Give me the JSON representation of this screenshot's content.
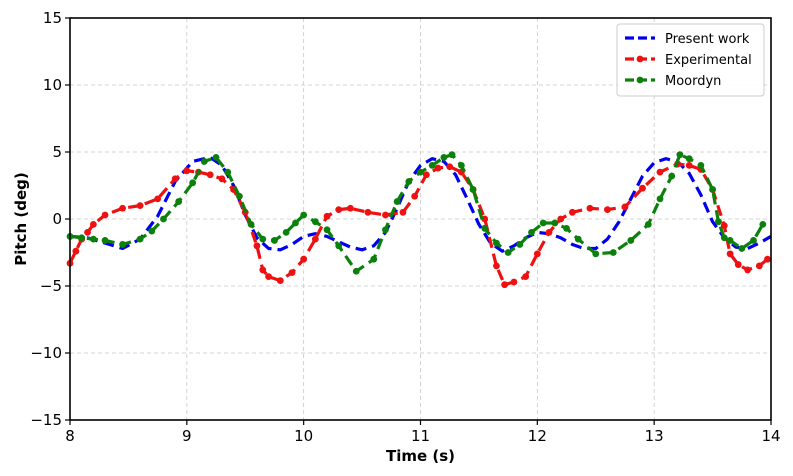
{
  "chart_data": {
    "type": "line",
    "title": "",
    "xlabel": "Time (s)",
    "ylabel": "Pitch (deg)",
    "xlim": [
      8,
      14
    ],
    "ylim": [
      -15,
      15
    ],
    "xticks": [
      8,
      9,
      10,
      11,
      12,
      13,
      14
    ],
    "yticks": [
      -15,
      -10,
      -5,
      0,
      5,
      10,
      15
    ],
    "xtick_labels": [
      "8",
      "9",
      "10",
      "11",
      "12",
      "13",
      "14"
    ],
    "ytick_labels": [
      "−15",
      "−10",
      "−5",
      "0",
      "5",
      "10",
      "15"
    ],
    "grid": true,
    "legend_position": "top-right",
    "series": [
      {
        "name": "Present work",
        "color": "#0000ee",
        "markers": false,
        "x": [
          8.0,
          8.15,
          8.3,
          8.45,
          8.6,
          8.75,
          8.9,
          9.05,
          9.2,
          9.3,
          9.4,
          9.5,
          9.6,
          9.7,
          9.8,
          9.9,
          10.0,
          10.1,
          10.2,
          10.3,
          10.4,
          10.5,
          10.6,
          10.7,
          10.8,
          10.9,
          11.0,
          11.1,
          11.2,
          11.3,
          11.4,
          11.5,
          11.6,
          11.7,
          11.8,
          11.9,
          12.0,
          12.1,
          12.2,
          12.3,
          12.4,
          12.5,
          12.6,
          12.7,
          12.8,
          12.9,
          13.0,
          13.1,
          13.2,
          13.3,
          13.4,
          13.5,
          13.6,
          13.7,
          13.8,
          13.9,
          14.0
        ],
        "y": [
          -1.3,
          -1.4,
          -1.8,
          -2.2,
          -1.5,
          0.2,
          2.8,
          4.3,
          4.6,
          4.0,
          2.5,
          0.3,
          -1.4,
          -2.2,
          -2.3,
          -1.9,
          -1.3,
          -1.1,
          -1.3,
          -1.7,
          -2.1,
          -2.3,
          -2.0,
          -1.0,
          0.8,
          2.8,
          4.0,
          4.5,
          4.3,
          3.3,
          1.5,
          -0.4,
          -1.8,
          -2.4,
          -2.0,
          -1.4,
          -1.0,
          -1.1,
          -1.4,
          -1.9,
          -2.2,
          -2.2,
          -1.5,
          -0.2,
          1.5,
          3.2,
          4.2,
          4.5,
          4.3,
          3.4,
          1.8,
          -0.2,
          -1.4,
          -2.1,
          -2.2,
          -1.8,
          -1.3
        ]
      },
      {
        "name": "Experimental",
        "color": "#ee1111",
        "markers": true,
        "x": [
          8.0,
          8.05,
          8.1,
          8.15,
          8.2,
          8.3,
          8.45,
          8.6,
          8.75,
          8.9,
          9.0,
          9.1,
          9.2,
          9.3,
          9.4,
          9.5,
          9.6,
          9.65,
          9.7,
          9.8,
          9.9,
          10.0,
          10.1,
          10.2,
          10.3,
          10.4,
          10.55,
          10.7,
          10.85,
          10.95,
          11.05,
          11.15,
          11.25,
          11.35,
          11.45,
          11.55,
          11.65,
          11.72,
          11.8,
          11.9,
          12.0,
          12.1,
          12.2,
          12.3,
          12.45,
          12.6,
          12.75,
          12.9,
          13.05,
          13.2,
          13.3,
          13.4,
          13.5,
          13.6,
          13.65,
          13.72,
          13.8,
          13.9,
          13.97
        ],
        "y": [
          -3.3,
          -2.4,
          -1.5,
          -1.0,
          -0.4,
          0.3,
          0.8,
          1.0,
          1.5,
          3.0,
          3.6,
          3.5,
          3.3,
          3.0,
          2.2,
          0.5,
          -2.0,
          -3.8,
          -4.3,
          -4.6,
          -4.0,
          -3.0,
          -1.5,
          0.2,
          0.7,
          0.8,
          0.5,
          0.3,
          0.5,
          1.7,
          3.3,
          3.8,
          3.9,
          3.5,
          2.2,
          0.0,
          -3.5,
          -4.9,
          -4.7,
          -4.3,
          -2.6,
          -1.0,
          0.0,
          0.5,
          0.8,
          0.7,
          0.9,
          2.3,
          3.5,
          4.1,
          4.0,
          3.7,
          2.2,
          -0.5,
          -2.6,
          -3.4,
          -3.8,
          -3.5,
          -3.0
        ]
      },
      {
        "name": "Moordyn",
        "color": "#0b800b",
        "markers": true,
        "x": [
          8.0,
          8.1,
          8.2,
          8.3,
          8.45,
          8.6,
          8.7,
          8.8,
          8.93,
          9.05,
          9.15,
          9.25,
          9.35,
          9.45,
          9.55,
          9.65,
          9.75,
          9.85,
          9.93,
          10.0,
          10.1,
          10.2,
          10.3,
          10.45,
          10.6,
          10.7,
          10.8,
          10.9,
          11.0,
          11.1,
          11.2,
          11.27,
          11.35,
          11.45,
          11.55,
          11.65,
          11.75,
          11.85,
          11.95,
          12.05,
          12.15,
          12.25,
          12.35,
          12.5,
          12.65,
          12.8,
          12.95,
          13.05,
          13.15,
          13.22,
          13.3,
          13.4,
          13.5,
          13.55,
          13.6,
          13.65,
          13.75,
          13.85,
          13.93
        ],
        "y": [
          -1.3,
          -1.4,
          -1.5,
          -1.6,
          -1.9,
          -1.5,
          -0.9,
          0.0,
          1.3,
          2.7,
          4.3,
          4.6,
          3.5,
          1.7,
          -0.4,
          -1.5,
          -1.6,
          -1.0,
          -0.3,
          0.3,
          -0.2,
          -0.8,
          -2.0,
          -3.9,
          -3.0,
          -0.8,
          1.3,
          2.8,
          3.5,
          4.0,
          4.6,
          4.8,
          4.0,
          2.2,
          -0.7,
          -1.8,
          -2.5,
          -1.9,
          -1.0,
          -0.3,
          -0.3,
          -0.7,
          -1.5,
          -2.6,
          -2.5,
          -1.6,
          -0.4,
          1.5,
          3.2,
          4.8,
          4.5,
          4.0,
          2.2,
          -0.2,
          -1.4,
          -1.6,
          -2.2,
          -1.6,
          -0.4
        ]
      }
    ]
  }
}
